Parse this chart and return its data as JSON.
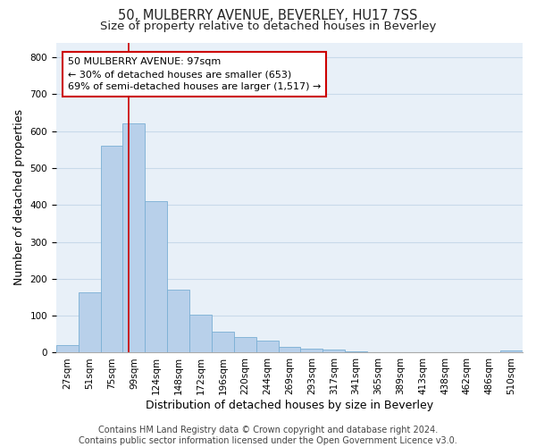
{
  "title": "50, MULBERRY AVENUE, BEVERLEY, HU17 7SS",
  "subtitle": "Size of property relative to detached houses in Beverley",
  "xlabel": "Distribution of detached houses by size in Beverley",
  "ylabel": "Number of detached properties",
  "footer_line1": "Contains HM Land Registry data © Crown copyright and database right 2024.",
  "footer_line2": "Contains public sector information licensed under the Open Government Licence v3.0.",
  "categories": [
    "27sqm",
    "51sqm",
    "75sqm",
    "99sqm",
    "124sqm",
    "148sqm",
    "172sqm",
    "196sqm",
    "220sqm",
    "244sqm",
    "269sqm",
    "293sqm",
    "317sqm",
    "341sqm",
    "365sqm",
    "389sqm",
    "413sqm",
    "438sqm",
    "462sqm",
    "486sqm",
    "510sqm"
  ],
  "values": [
    20,
    163,
    560,
    620,
    410,
    170,
    103,
    57,
    43,
    32,
    15,
    10,
    8,
    3,
    2,
    1,
    0,
    0,
    0,
    0,
    7
  ],
  "bar_color": "#b8d0ea",
  "bar_edge_color": "#7aafd4",
  "grid_color": "#c8daea",
  "background_color": "#e8f0f8",
  "vline_x": 2.75,
  "vline_color": "#cc0000",
  "annotation_line1": "50 MULBERRY AVENUE: 97sqm",
  "annotation_line2": "← 30% of detached houses are smaller (653)",
  "annotation_line3": "69% of semi-detached houses are larger (1,517) →",
  "annotation_box_color": "#ffffff",
  "annotation_box_edge_color": "#cc0000",
  "ylim": [
    0,
    840
  ],
  "yticks": [
    0,
    100,
    200,
    300,
    400,
    500,
    600,
    700,
    800
  ],
  "title_fontsize": 10.5,
  "subtitle_fontsize": 9.5,
  "ylabel_fontsize": 9,
  "xlabel_fontsize": 9,
  "tick_fontsize": 7.5,
  "annotation_fontsize": 8,
  "footer_fontsize": 7
}
